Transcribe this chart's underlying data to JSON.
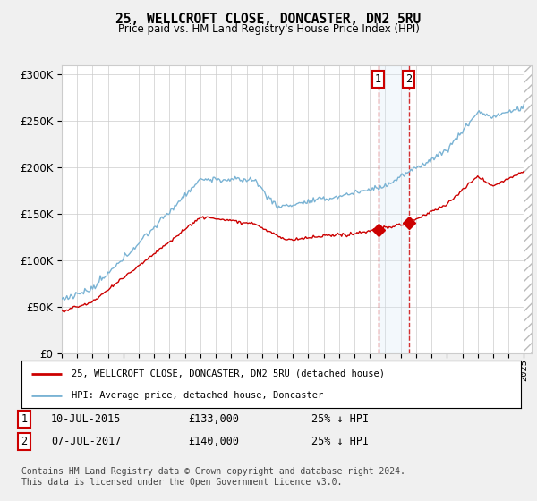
{
  "title": "25, WELLCROFT CLOSE, DONCASTER, DN2 5RU",
  "subtitle": "Price paid vs. HM Land Registry's House Price Index (HPI)",
  "hpi_label": "HPI: Average price, detached house, Doncaster",
  "property_label": "25, WELLCROFT CLOSE, DONCASTER, DN2 5RU (detached house)",
  "footnote": "Contains HM Land Registry data © Crown copyright and database right 2024.\nThis data is licensed under the Open Government Licence v3.0.",
  "transaction1": {
    "date": "10-JUL-2015",
    "price": 133000,
    "pct": "25% ↓ HPI"
  },
  "transaction2": {
    "date": "07-JUL-2017",
    "price": 140000,
    "pct": "25% ↓ HPI"
  },
  "ylim": [
    0,
    310000
  ],
  "yticks": [
    0,
    50000,
    100000,
    150000,
    200000,
    250000,
    300000
  ],
  "background_color": "#f0f0f0",
  "plot_background": "#ffffff",
  "hpi_color": "#7ab3d4",
  "property_color": "#cc0000",
  "grid_color": "#cccccc",
  "vline_color": "#cc0000",
  "shade_color": "#d8eaf8",
  "t1_year": 2015.54,
  "t2_year": 2017.54
}
